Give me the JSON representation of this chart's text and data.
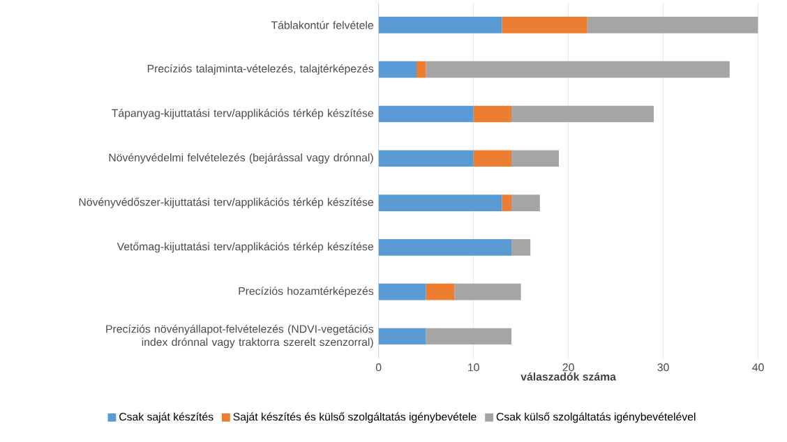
{
  "chart_data": {
    "type": "bar",
    "orientation": "horizontal",
    "stacked": true,
    "xlabel": "válaszadók száma",
    "categories": [
      "Táblakontúr felvétele",
      "Precíziós talajminta-vételezés, talajtérképezés",
      "Tápanyag-kijuttatási terv/applikációs térkép készítése",
      "Növényvédelmi felvételezés (bejárással vagy drónnal)",
      "Növényvédőszer-kijuttatási terv/applikációs térkép készítése",
      "Vetőmag-kijuttatási terv/applikációs térkép készítése",
      "Precíziós hozamtérképezés",
      "Precíziós növényállapot-felvételezés (NDVI-vegetációs index drónnal vagy traktorra szerelt szenzorral)"
    ],
    "series": [
      {
        "name": "Csak saját készítés",
        "color": "#5b9bd5",
        "values": [
          13,
          4,
          10,
          10,
          13,
          14,
          5,
          5
        ]
      },
      {
        "name": "Saját készítés és külső szolgáltatás igénybevétele",
        "color": "#ed7d31",
        "values": [
          9,
          1,
          4,
          4,
          1,
          0,
          3,
          0
        ]
      },
      {
        "name": "Csak külső szolgáltatás igénybevételével",
        "color": "#a5a5a5",
        "values": [
          18,
          32,
          15,
          5,
          3,
          2,
          7,
          9
        ]
      }
    ],
    "xlim": [
      0,
      40
    ],
    "xticks": [
      0,
      10,
      20,
      30,
      40
    ],
    "grid": "x",
    "legend": "bottom"
  }
}
